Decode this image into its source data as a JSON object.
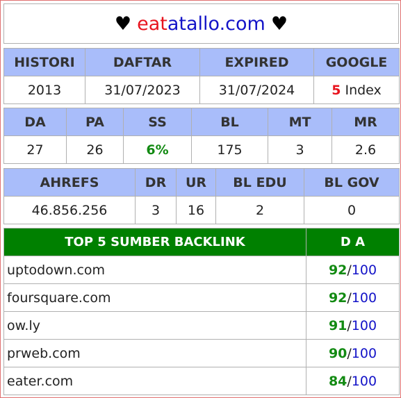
{
  "title": {
    "heart": "♥",
    "part1": "eat",
    "part2": "atallo.com"
  },
  "table1": {
    "headers": [
      "HISTORI",
      "DAFTAR",
      "EXPIRED",
      "GOOGLE"
    ],
    "values": [
      "2013",
      "31/07/2023",
      "31/07/2024"
    ],
    "google_count": "5",
    "google_suffix": " Index"
  },
  "table2": {
    "headers": [
      "DA",
      "PA",
      "SS",
      "BL",
      "MT",
      "MR"
    ],
    "values": [
      "27",
      "26",
      "6%",
      "175",
      "3",
      "2.6"
    ]
  },
  "table3": {
    "headers": [
      "AHREFS",
      "DR",
      "UR",
      "BL EDU",
      "BL GOV"
    ],
    "values": [
      "46.856.256",
      "3",
      "16",
      "2",
      "0"
    ]
  },
  "backlinks": {
    "header_source": "TOP 5 SUMBER BACKLINK",
    "header_da": "D A",
    "max": "100",
    "rows": [
      {
        "domain": "uptodown.com",
        "da": "92"
      },
      {
        "domain": "foursquare.com",
        "da": "92"
      },
      {
        "domain": "ow.ly",
        "da": "91"
      },
      {
        "domain": "prweb.com",
        "da": "90"
      },
      {
        "domain": "eater.com",
        "da": "84"
      }
    ]
  },
  "colors": {
    "header_bg": "#a9bdfa",
    "backlink_header_bg": "#008000",
    "accent_red": "#e8141e",
    "accent_blue": "#1414c8",
    "accent_green": "#128a12"
  }
}
